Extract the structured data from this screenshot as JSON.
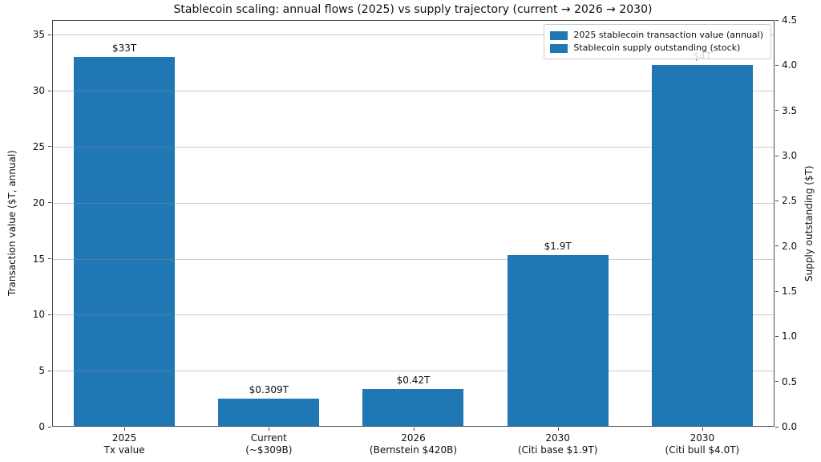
{
  "chart_data": {
    "type": "bar",
    "title": "Stablecoin scaling: annual flows (2025) vs supply trajectory (current → 2026 → 2030)",
    "bar_color": "#1f77b4",
    "categories": [
      "2025\nTx value",
      "Current\n(~$309B)",
      "2026\n(Bernstein $420B)",
      "2030\n(Citi base $1.9T)",
      "2030\n(Citi bull $4.0T)"
    ],
    "bars": [
      {
        "category": "2025\nTx value",
        "value": 33,
        "axis": "left",
        "value_label": "$33T"
      },
      {
        "category": "Current\n(~$309B)",
        "value": 0.309,
        "axis": "right",
        "value_label": "$0.309T"
      },
      {
        "category": "2026\n(Bernstein $420B)",
        "value": 0.42,
        "axis": "right",
        "value_label": "$0.42T"
      },
      {
        "category": "2030\n(Citi base $1.9T)",
        "value": 1.9,
        "axis": "right",
        "value_label": "$1.9T"
      },
      {
        "category": "2030\n(Citi bull $4.0T)",
        "value": 4.0,
        "axis": "right",
        "value_label": "$4T"
      }
    ],
    "left_axis": {
      "label": "Transaction value ($T, annual)",
      "tick_values": [
        0,
        5,
        10,
        15,
        20,
        25,
        30,
        35
      ],
      "tick_labels": [
        "0",
        "5",
        "10",
        "15",
        "20",
        "25",
        "30",
        "35"
      ],
      "ylim": [
        0,
        36.3
      ]
    },
    "right_axis": {
      "label": "Supply outstanding ($T)",
      "tick_values": [
        0,
        0.5,
        1.0,
        1.5,
        2.0,
        2.5,
        3.0,
        3.5,
        4.0,
        4.5
      ],
      "tick_labels": [
        "0.0",
        "0.5",
        "1.0",
        "1.5",
        "2.0",
        "2.5",
        "3.0",
        "3.5",
        "4.0",
        "4.5"
      ],
      "ylim": [
        0,
        4.5
      ]
    },
    "legend": {
      "position": "upper right",
      "entries": [
        {
          "label": "2025 stablecoin transaction value (annual)",
          "color": "#1f77b4"
        },
        {
          "label": "Stablecoin supply outstanding (stock)",
          "color": "#1f77b4"
        }
      ]
    },
    "grid": {
      "orientation": "horizontal",
      "follows": "left-axis-ticks"
    }
  }
}
